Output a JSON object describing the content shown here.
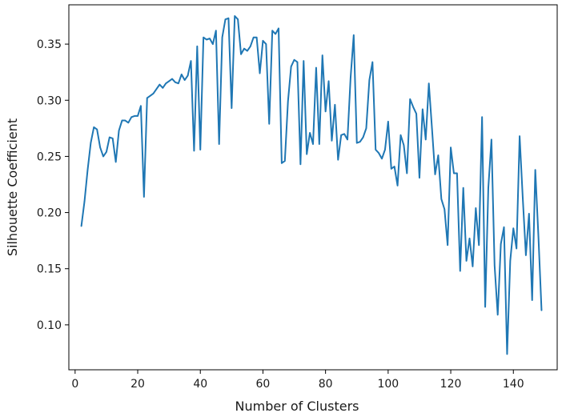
{
  "chart_data": {
    "type": "line",
    "xlabel": "Number of Clusters",
    "ylabel": "Silhouette Coefficient",
    "xlim": [
      -2,
      154
    ],
    "ylim": [
      0.06,
      0.385
    ],
    "x_ticks": [
      0,
      20,
      40,
      60,
      80,
      100,
      120,
      140
    ],
    "y_ticks": [
      0.1,
      0.15,
      0.2,
      0.25,
      0.3,
      0.35
    ],
    "x_tick_labels": [
      "0",
      "20",
      "40",
      "60",
      "80",
      "100",
      "120",
      "140"
    ],
    "y_tick_labels": [
      "0.10",
      "0.15",
      "0.20",
      "0.25",
      "0.30",
      "0.35"
    ],
    "grid": false,
    "line_color": "#1f77b4",
    "series": [
      {
        "x": [
          2,
          3,
          4,
          5,
          6,
          7,
          8,
          9,
          10,
          11,
          12,
          13,
          14,
          15,
          16,
          17,
          18,
          19,
          20,
          21,
          22,
          23,
          24,
          25,
          26,
          27,
          28,
          29,
          30,
          31,
          32,
          33,
          34,
          35,
          36,
          37,
          38,
          39,
          40,
          41,
          42,
          43,
          44,
          45,
          46,
          47,
          48,
          49,
          50,
          51,
          52,
          53,
          54,
          55,
          56,
          57,
          58,
          59,
          60,
          61,
          62,
          63,
          64,
          65,
          66,
          67,
          68,
          69,
          70,
          71,
          72,
          73,
          74,
          75,
          76,
          77,
          78,
          79,
          80,
          81,
          82,
          83,
          84,
          85,
          86,
          87,
          88,
          89,
          90,
          91,
          92,
          93,
          94,
          95,
          96,
          97,
          98,
          99,
          100,
          101,
          102,
          103,
          104,
          105,
          106,
          107,
          108,
          109,
          110,
          111,
          112,
          113,
          114,
          115,
          116,
          117,
          118,
          119,
          120,
          121,
          122,
          123,
          124,
          125,
          126,
          127,
          128,
          129,
          130,
          131,
          132,
          133,
          134,
          135,
          136,
          137,
          138,
          139,
          140,
          141,
          142,
          143,
          144,
          145,
          146,
          147,
          148,
          149
        ],
        "values": [
          0.188,
          0.21,
          0.238,
          0.262,
          0.276,
          0.274,
          0.258,
          0.25,
          0.254,
          0.267,
          0.266,
          0.245,
          0.273,
          0.282,
          0.282,
          0.28,
          0.285,
          0.286,
          0.286,
          0.295,
          0.214,
          0.302,
          0.304,
          0.306,
          0.31,
          0.314,
          0.311,
          0.315,
          0.317,
          0.319,
          0.316,
          0.315,
          0.323,
          0.318,
          0.322,
          0.335,
          0.255,
          0.348,
          0.256,
          0.356,
          0.354,
          0.355,
          0.35,
          0.362,
          0.261,
          0.356,
          0.372,
          0.373,
          0.293,
          0.375,
          0.372,
          0.341,
          0.346,
          0.344,
          0.348,
          0.356,
          0.356,
          0.324,
          0.353,
          0.35,
          0.279,
          0.362,
          0.359,
          0.364,
          0.244,
          0.246,
          0.299,
          0.33,
          0.336,
          0.334,
          0.243,
          0.335,
          0.252,
          0.271,
          0.261,
          0.329,
          0.261,
          0.34,
          0.29,
          0.317,
          0.264,
          0.296,
          0.247,
          0.269,
          0.27,
          0.265,
          0.32,
          0.358,
          0.262,
          0.263,
          0.267,
          0.275,
          0.318,
          0.334,
          0.256,
          0.253,
          0.248,
          0.256,
          0.281,
          0.239,
          0.241,
          0.224,
          0.269,
          0.26,
          0.235,
          0.301,
          0.294,
          0.288,
          0.231,
          0.292,
          0.265,
          0.315,
          0.275,
          0.234,
          0.251,
          0.212,
          0.203,
          0.171,
          0.258,
          0.235,
          0.235,
          0.148,
          0.222,
          0.157,
          0.177,
          0.152,
          0.204,
          0.171,
          0.285,
          0.116,
          0.222,
          0.265,
          0.153,
          0.109,
          0.172,
          0.187,
          0.074,
          0.157,
          0.186,
          0.168,
          0.268,
          0.213,
          0.162,
          0.199,
          0.122,
          0.238,
          0.179,
          0.113
        ]
      }
    ]
  }
}
